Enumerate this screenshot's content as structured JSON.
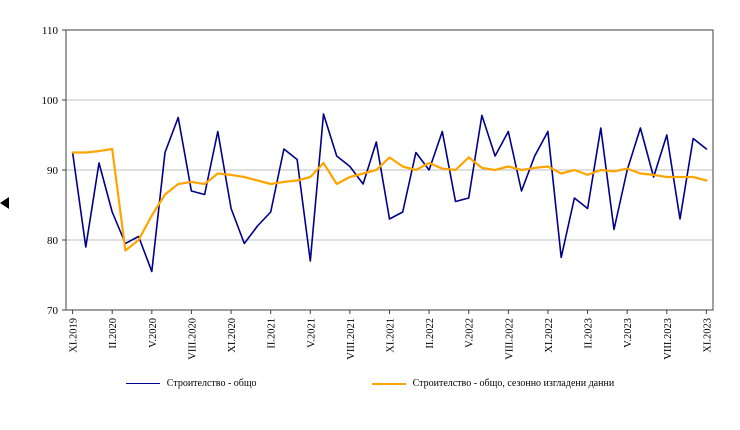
{
  "chart_data": {
    "type": "line",
    "title": "",
    "xlabel": "",
    "ylabel": "",
    "ylim": [
      70,
      110
    ],
    "y_ticks": [
      70,
      80,
      90,
      100,
      110
    ],
    "grid": true,
    "legend_position": "bottom",
    "x_tick_labels": [
      "XI.2019",
      "II.2020",
      "V.2020",
      "VIII.2020",
      "XI.2020",
      "II.2021",
      "V.2021",
      "VIII.2021",
      "XI.2021",
      "II.2022",
      "V.2022",
      "VIII.2022",
      "XI.2022",
      "II.2023",
      "V.2023",
      "VIII.2023",
      "XI.2023"
    ],
    "x_tick_every": 3,
    "n_points": 49,
    "series": [
      {
        "name": "Строителство - общо",
        "color": "#00008B",
        "stroke_width": 1.6,
        "values": [
          92.5,
          79,
          91,
          84,
          79.5,
          80.5,
          75.5,
          92.5,
          97.5,
          87,
          86.5,
          95.5,
          84.5,
          79.5,
          82,
          84,
          93,
          91.5,
          77,
          98,
          92,
          90.5,
          88,
          94,
          83,
          84,
          92.5,
          90,
          95.5,
          85.5,
          86,
          97.8,
          92,
          95.5,
          87,
          92,
          95.5,
          77.5,
          86,
          84.5,
          96,
          81.5,
          90,
          96,
          89,
          95,
          83,
          94.5,
          93
        ]
      },
      {
        "name": "Строителство - общо, сезонно изгладени данни",
        "color": "#FFA500",
        "stroke_width": 2.2,
        "values": [
          92.5,
          92.5,
          92.7,
          93,
          78.5,
          80,
          83.5,
          86.5,
          88,
          88.3,
          88,
          89.5,
          89.3,
          89,
          88.5,
          88,
          88.3,
          88.5,
          89,
          91,
          88,
          89,
          89.5,
          90,
          91.8,
          90.5,
          90,
          91,
          90.2,
          90,
          91.8,
          90.3,
          90,
          90.5,
          90,
          90.3,
          90.5,
          89.5,
          90,
          89.3,
          90,
          89.8,
          90.2,
          89.5,
          89.3,
          89,
          89,
          89,
          88.5
        ]
      }
    ],
    "colors": {
      "gridline": "#bfbfbf",
      "plot_border": "#404040",
      "background": "#ffffff"
    }
  },
  "decorations": {
    "left_arrow_marker": {
      "icon": "triangle-left",
      "color": "#000000"
    }
  }
}
